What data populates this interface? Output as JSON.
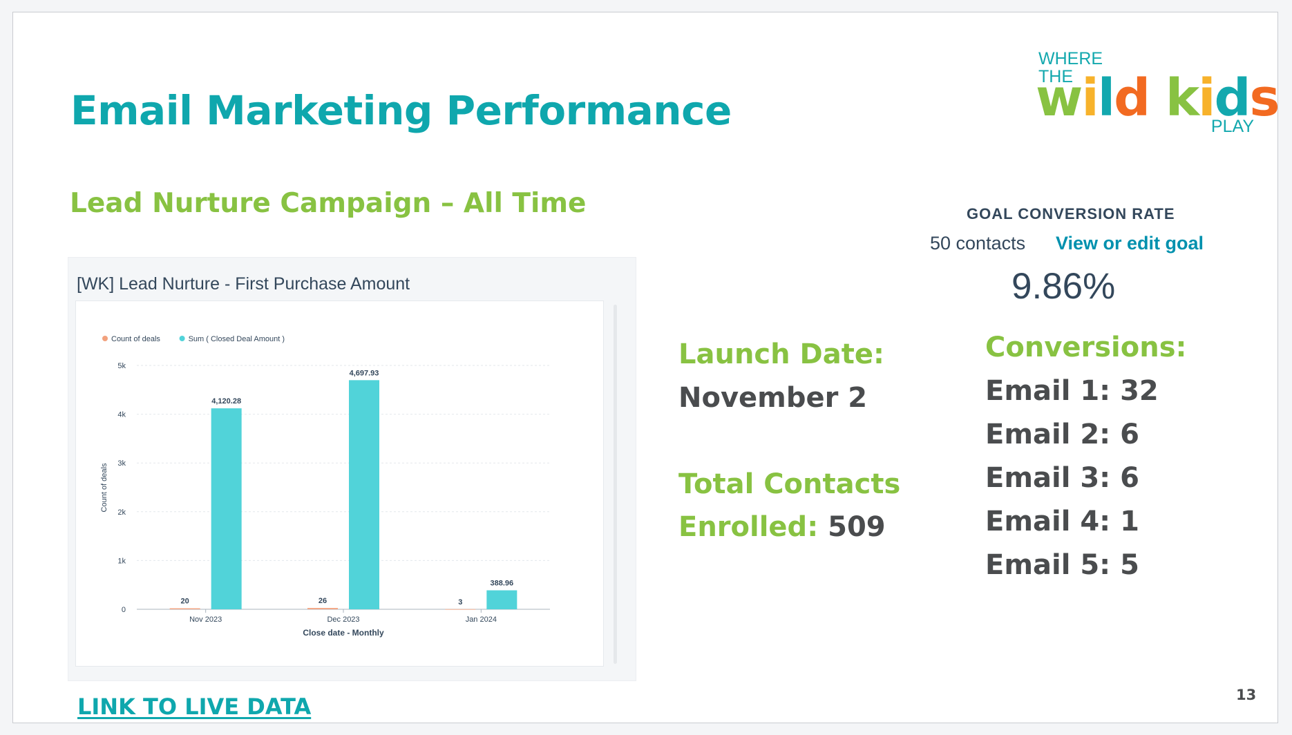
{
  "slide": {
    "title": "Email Marketing Performance",
    "subtitle": "Lead Nurture Campaign – All Time",
    "page_number": "13",
    "link_label": "LINK TO LIVE DATA"
  },
  "logo": {
    "where": "WHERE",
    "the": "THE",
    "wild_kids": "wild kids",
    "play": "PLAY",
    "colors": [
      "#88c242",
      "#f7b22b",
      "#13a8ae",
      "#f26a21"
    ]
  },
  "report": {
    "title": "[WK] Lead Nurture - First Purchase Amount"
  },
  "chart_data": {
    "type": "bar",
    "categories": [
      "Nov 2023",
      "Dec 2023",
      "Jan 2024"
    ],
    "series": [
      {
        "name": "Count of deals",
        "values": [
          20,
          26,
          3
        ],
        "color": "#f2a17d"
      },
      {
        "name": "Sum ( Closed Deal Amount )",
        "values": [
          4120.28,
          4697.93,
          388.96
        ],
        "color": "#51d3d9"
      }
    ],
    "data_labels": [
      [
        "20",
        "26",
        "3"
      ],
      [
        "4,120.28",
        "4,697.93",
        "388.96"
      ]
    ],
    "xlabel": "Close date - Monthly",
    "ylabel": "Count of deals",
    "ylim": [
      0,
      5000
    ],
    "yticks": [
      0,
      1000,
      2000,
      3000,
      4000,
      5000
    ],
    "ytick_labels": [
      "0",
      "1k",
      "2k",
      "3k",
      "4k",
      "5k"
    ],
    "grid": true,
    "legend": "top-left"
  },
  "launch": {
    "label": "Launch Date:",
    "value": "November 2"
  },
  "total": {
    "label_line1": "Total Contacts",
    "label_line2": "Enrolled:",
    "value": "509"
  },
  "goal": {
    "label": "GOAL CONVERSION RATE",
    "contacts": "50 contacts",
    "link": "View or edit goal",
    "rate": "9.86%"
  },
  "conversions": {
    "label": "Conversions:",
    "items": [
      "Email 1: 32",
      "Email 2: 6",
      "Email 3: 6",
      "Email 4: 1",
      "Email 5: 5"
    ]
  }
}
